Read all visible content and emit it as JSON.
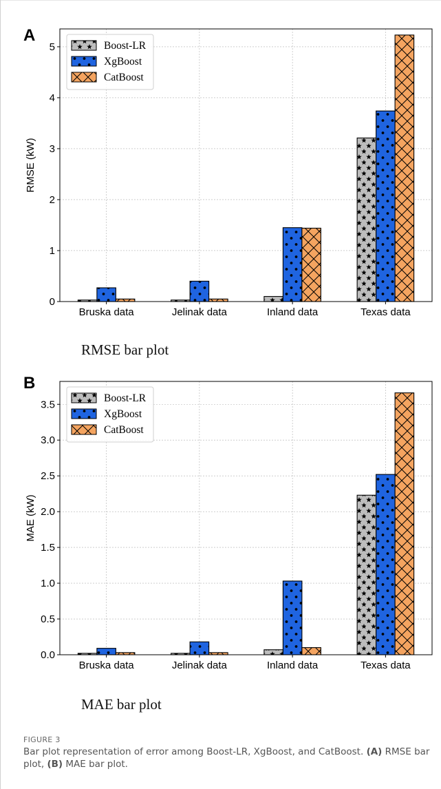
{
  "panels": [
    {
      "letter": "A",
      "subcaption": "RMSE bar plot",
      "chart": "rmse"
    },
    {
      "letter": "B",
      "subcaption": "MAE bar plot",
      "chart": "mae"
    }
  ],
  "figure": {
    "label": "FIGURE 3",
    "caption_prefix": "Bar plot representation of error among Boost-LR, XgBoost, and CatBoost. ",
    "a_tag": "(A)",
    "a_text": " RMSE bar plot, ",
    "b_tag": "(B)",
    "b_text": " MAE bar plot."
  },
  "colors": {
    "boost_lr": "#bdbdbd",
    "xgboost": "#1f64e0",
    "catboost": "#f4a460"
  },
  "chart_data": [
    {
      "type": "bar",
      "title": "",
      "xlabel": "",
      "ylabel": "RMSE (kW)",
      "ylim": [
        0,
        5.35
      ],
      "yticks": [
        0,
        1,
        2,
        3,
        4,
        5
      ],
      "ytick_labels": [
        "0",
        "1",
        "2",
        "3",
        "4",
        "5"
      ],
      "categories": [
        "Bruska data",
        "Jelinak data",
        "Inland data",
        "Texas data"
      ],
      "series": [
        {
          "name": "Boost-LR",
          "values": [
            0.03,
            0.03,
            0.1,
            3.21
          ]
        },
        {
          "name": "XgBoost",
          "values": [
            0.27,
            0.4,
            1.45,
            3.74
          ]
        },
        {
          "name": "CatBoost",
          "values": [
            0.05,
            0.05,
            1.44,
            5.23
          ]
        }
      ],
      "grid": true,
      "legend": "top-left"
    },
    {
      "type": "bar",
      "title": "",
      "xlabel": "",
      "ylabel": "MAE (kW)",
      "ylim": [
        0,
        3.82
      ],
      "yticks": [
        0,
        0.5,
        1,
        1.5,
        2,
        2.5,
        3,
        3.5
      ],
      "ytick_labels": [
        "0.0",
        "0.5",
        "1.0",
        "1.5",
        "2.0",
        "2.5",
        "3.0",
        "3.5"
      ],
      "categories": [
        "Bruska data",
        "Jelinak data",
        "Inland data",
        "Texas data"
      ],
      "series": [
        {
          "name": "Boost-LR",
          "values": [
            0.02,
            0.02,
            0.07,
            2.23
          ]
        },
        {
          "name": "XgBoost",
          "values": [
            0.09,
            0.18,
            1.03,
            2.52
          ]
        },
        {
          "name": "CatBoost",
          "values": [
            0.03,
            0.03,
            0.1,
            3.66
          ]
        }
      ],
      "grid": true,
      "legend": "top-left"
    }
  ]
}
